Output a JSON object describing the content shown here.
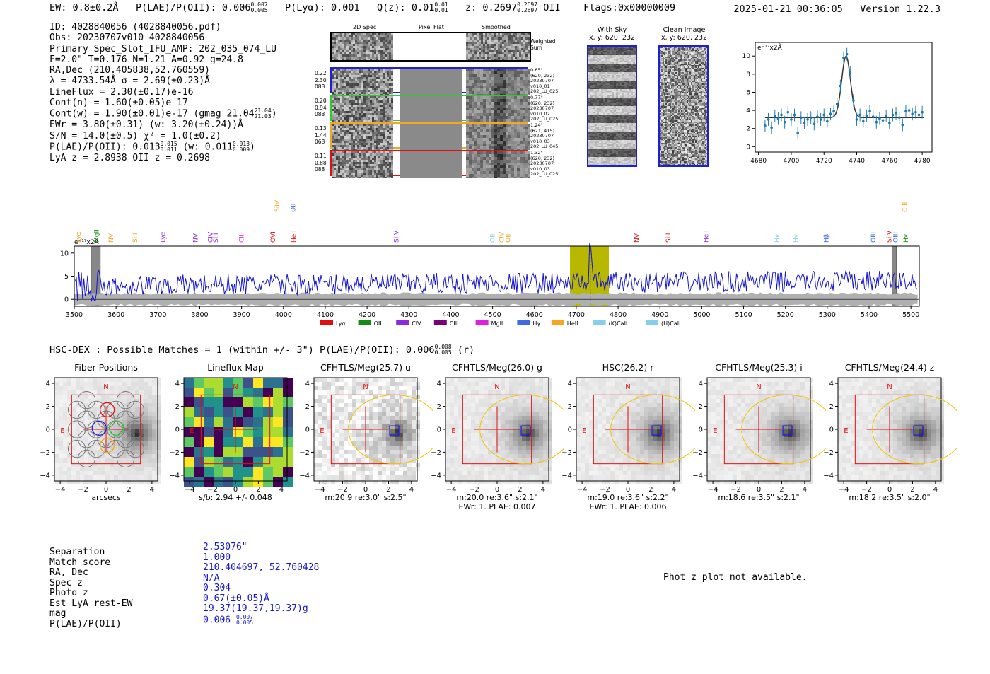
{
  "header": {
    "ew": "EW: 0.8±0.2Å",
    "plae_label": "P(LAE)/P(OII): 0.006",
    "plae_hi": "0.007",
    "plae_lo": "0.005",
    "plya": "P(Lyα): 0.001",
    "qz_label": "Q(z): 0.01",
    "qz_hi": "0.01",
    "qz_lo": "0.01",
    "z_label": "z: 0.2697",
    "z_hi": "0.2697",
    "z_lo": "0.2697",
    "z_line": "OII",
    "flags": "Flags:0x00000009",
    "timestamp": "2025-01-21 00:36:05",
    "version": "Version 1.22.3"
  },
  "info": {
    "id": "ID: 4028840056 (4028840056.pdf)",
    "obs": "Obs: 20230707v010_4028840056",
    "primary": "Primary Spec_Slot_IFU_AMP: 202_035_074_LU",
    "fiber": "F=2.0\"  T=0.176  N=1.21  A=0.92  g=24.8",
    "radec": "RA,Dec (210.405838,52.760559)",
    "lambda": "λ = 4733.54Å  σ = 2.69(±0.23)Å",
    "lineflux": "LineFlux = 2.30(±0.17)e-16",
    "contn": "Cont(n) = 1.60(±0.05)e-17",
    "contw": "Cont(w) = 1.90(±0.01)e-17 (gmag 21.04",
    "contw_hi": "21.04",
    "contw_lo": "21.03",
    "ewr": "EWr = 3.80(±0.31)  (w: 3.20(±0.24))Å",
    "sn": "S/N = 14.0(±0.5)  χ² = 1.0(±0.2)",
    "plae": "P(LAE)/P(OII): 0.013",
    "plae_hi": "0.015",
    "plae_lo": "0.011",
    "plae_w": "(w: 0.011",
    "plae_w_hi": "0.013",
    "plae_w_lo": "0.009",
    "lyaz": "LyA z = 2.8938   OII z = 0.2698"
  },
  "cutouts": {
    "col_labels": [
      "2D Spec",
      "Pixel Flat",
      "Smoothed"
    ],
    "weighted_sum": "Weighted Sum",
    "rows": [
      {
        "left": [
          "0.22",
          "2.30",
          "088"
        ],
        "right": [
          "0.65\"",
          "(620, 232)",
          "20230707",
          "v010_01",
          "202_LU_025"
        ],
        "color": "#1f1fd6"
      },
      {
        "left": [
          "0.20",
          "0.94",
          "088"
        ],
        "right": [
          "0.77\"",
          "(620, 232)",
          "20230707",
          "v010_02",
          "202_LU_025"
        ],
        "color": "#2ecc2e"
      },
      {
        "left": [
          "0.13",
          "1.44",
          "068"
        ],
        "right": [
          "1.24\"",
          "(621, 415)",
          "20230707",
          "v010_03",
          "202_LU_045"
        ],
        "color": "#f5a623"
      },
      {
        "left": [
          "0.11",
          "0.88",
          "088"
        ],
        "right": [
          "1.32\"",
          "(620, 232)",
          "20230707",
          "v010_03",
          "202_LU_025"
        ],
        "color": "#e01010"
      }
    ],
    "with_sky_title": "With Sky",
    "with_sky_xy": "x, y: 620, 232",
    "clean_title": "Clean Image",
    "clean_xy": "x, y: 620, 232"
  },
  "fit_plot": {
    "unit": "e⁻¹⁷x2Å",
    "x_ticks": [
      4680,
      4700,
      4720,
      4740,
      4760,
      4780
    ],
    "y_ticks": [
      0,
      2,
      4,
      6,
      8,
      10
    ],
    "xlim": [
      4678,
      4786
    ],
    "ylim": [
      -0.6,
      11.5
    ],
    "model": {
      "continuum": 3.2,
      "peak": 10.0,
      "center": 4733.5,
      "sigma": 2.69
    },
    "points_x": [
      4684,
      4686,
      4688,
      4690,
      4692,
      4694,
      4696,
      4698,
      4700,
      4702,
      4704,
      4706,
      4708,
      4710,
      4712,
      4714,
      4716,
      4718,
      4720,
      4722,
      4724,
      4726,
      4728,
      4730,
      4732,
      4734,
      4736,
      4738,
      4740,
      4742,
      4744,
      4746,
      4748,
      4750,
      4752,
      4754,
      4756,
      4758,
      4760,
      4762,
      4764,
      4766,
      4768,
      4770,
      4772,
      4774,
      4776,
      4778,
      4780
    ],
    "points_y": [
      2.3,
      3.0,
      2.1,
      3.4,
      3.1,
      3.5,
      2.7,
      3.8,
      3.0,
      3.5,
      1.5,
      3.2,
      2.6,
      3.0,
      3.2,
      2.5,
      3.3,
      3.0,
      3.5,
      2.8,
      3.6,
      3.9,
      4.7,
      6.7,
      9.8,
      10.2,
      8.2,
      5.1,
      3.0,
      3.5,
      2.8,
      3.4,
      3.9,
      3.3,
      2.7,
      3.1,
      2.9,
      3.4,
      2.6,
      3.5,
      3.7,
      3.2,
      2.4,
      3.9,
      4.0,
      3.6,
      3.8,
      3.5,
      3.8
    ],
    "points_err": 0.7
  },
  "spectrum": {
    "unit": "e⁻¹⁷x2Å",
    "xlim": [
      3500,
      5520
    ],
    "ylim": [
      -1.5,
      11.5
    ],
    "x_ticks": [
      3500,
      3600,
      3700,
      3800,
      3900,
      4000,
      4100,
      4200,
      4300,
      4400,
      4500,
      4600,
      4700,
      4800,
      4900,
      5000,
      5100,
      5200,
      5300,
      5400,
      5500
    ],
    "y_ticks": [
      0,
      5,
      10
    ],
    "highlight": [
      4685,
      4778
    ],
    "line_center": 4733.5,
    "masked": [
      [
        3540,
        3562
      ],
      [
        5455,
        5466
      ]
    ],
    "lines": [
      {
        "label": "Lyα",
        "x": 3510,
        "color": "#f5a623",
        "row": 0
      },
      {
        "label": "MgII",
        "x": 3553,
        "color": "#138c13",
        "row": 0
      },
      {
        "label": "NV",
        "x": 3588,
        "color": "#f5a623",
        "row": 0
      },
      {
        "label": "SiII",
        "x": 3645,
        "color": "#f5a623",
        "row": 0
      },
      {
        "label": "Lyα",
        "x": 3712,
        "color": "#8a2be2",
        "row": 0
      },
      {
        "label": "NV",
        "x": 3790,
        "color": "#8a2be2",
        "row": 0
      },
      {
        "label": "CIV",
        "x": 3825,
        "color": "#8a2be2",
        "row": 0
      },
      {
        "label": "SiII",
        "x": 3838,
        "color": "#8a2be2",
        "row": 0
      },
      {
        "label": "CII",
        "x": 3900,
        "color": "#e020e0",
        "row": 0
      },
      {
        "label": "OVI",
        "x": 3975,
        "color": "#e01010",
        "row": 0
      },
      {
        "label": "HeII",
        "x": 4025,
        "color": "#e01010",
        "row": 0
      },
      {
        "label": "SiIV",
        "x": 3985,
        "color": "#f5a623",
        "row": 1
      },
      {
        "label": "OII",
        "x": 4023,
        "color": "#4169e1",
        "row": 1
      },
      {
        "label": "SiIV",
        "x": 4270,
        "color": "#8a2be2",
        "row": 0
      },
      {
        "label": "OII",
        "x": 4500,
        "color": "#87ceeb",
        "row": 0
      },
      {
        "label": "CIV",
        "x": 4522,
        "color": "#f5a623",
        "row": 0
      },
      {
        "label": "OII",
        "x": 4537,
        "color": "#f5a623",
        "row": 0
      },
      {
        "label": "NV",
        "x": 4845,
        "color": "#e01010",
        "row": 0
      },
      {
        "label": "SiII",
        "x": 4920,
        "color": "#e01010",
        "row": 0
      },
      {
        "label": "HeII",
        "x": 5010,
        "color": "#8a2be2",
        "row": 0
      },
      {
        "label": "Hγ",
        "x": 5180,
        "color": "#87ceeb",
        "row": 0
      },
      {
        "label": "Hγ",
        "x": 5225,
        "color": "#87ceeb",
        "row": 0
      },
      {
        "label": "Hβ",
        "x": 5298,
        "color": "#4169e1",
        "row": 0
      },
      {
        "label": "OIII",
        "x": 5410,
        "color": "#4169e1",
        "row": 0
      },
      {
        "label": "SiIV",
        "x": 5448,
        "color": "#e01010",
        "row": 0
      },
      {
        "label": "OIII",
        "x": 5463,
        "color": "#4169e1",
        "row": 0
      },
      {
        "label": "Hγ",
        "x": 5488,
        "color": "#138c13",
        "row": 0
      },
      {
        "label": "CIII",
        "x": 5485,
        "color": "#f5a623",
        "row": 1
      }
    ],
    "legend": [
      {
        "label": "Lyα",
        "color": "#e01010"
      },
      {
        "label": "OII",
        "color": "#138c13"
      },
      {
        "label": "CIV",
        "color": "#8a2be2"
      },
      {
        "label": "CIII",
        "color": "#7a007a"
      },
      {
        "label": "MgII",
        "color": "#e020e0"
      },
      {
        "label": "Hγ",
        "color": "#4169e1"
      },
      {
        "label": "HeII",
        "color": "#f5a623"
      },
      {
        "label": "(K)CaII",
        "color": "#87ceeb"
      },
      {
        "label": "(H)CaII",
        "color": "#87ceeb"
      }
    ]
  },
  "match_header": {
    "text": "HSC-DEX : Possible Matches = 1 (within +/- 3\")  P(LAE)/P(OII): 0.006",
    "hi": "0.008",
    "lo": "0.005",
    "band": "(r)"
  },
  "panels": [
    {
      "title": "Fiber Positions",
      "note1": "arcsecs",
      "note2": ""
    },
    {
      "title": "Lineflux Map",
      "note1": "s/b: 2.94 +/- 0.048",
      "note2": ""
    },
    {
      "title": "CFHTLS/Meg(25.7) u",
      "note1": "m:20.9  re:3.0\"  s:2.5\"",
      "note2": ""
    },
    {
      "title": "CFHTLS/Meg(26.0) g",
      "note1": "m:20.0  re:3.6\"  s:2.1\"",
      "note2": "EWr: 1. PLAE: 0.007"
    },
    {
      "title": "HSC(26.2) r",
      "note1": "m:19.0  re:3.6\"  s:2.2\"",
      "note2": "EWr: 1. PLAE: 0.006"
    },
    {
      "title": "CFHTLS/Meg(25.3) i",
      "note1": "m:18.6  re:3.5\"  s:2.1\"",
      "note2": ""
    },
    {
      "title": "CFHTLS/Meg(24.4) z",
      "note1": "m:18.2  re:3.5\"  s:2.0\"",
      "note2": ""
    }
  ],
  "panel_axes": {
    "ticks": [
      "−4",
      "−2",
      "0",
      "2",
      "4"
    ],
    "north": "N",
    "east": "E"
  },
  "match_table": {
    "labels": [
      "Separation",
      "Match score",
      "RA, Dec",
      "Spec z",
      "Photo z",
      "Est LyA rest-EW",
      "mag",
      "P(LAE)/P(OII)"
    ],
    "values": [
      "2.53076\"",
      "1.000",
      "210.404697, 52.760428",
      "N/A",
      "0.304",
      "0.67(±0.05)Å",
      "19.37(19.37,19.37)g",
      "0.006"
    ],
    "plae_hi": "0.007",
    "plae_lo": "0.005"
  },
  "photz_note": "Phot z plot not available."
}
